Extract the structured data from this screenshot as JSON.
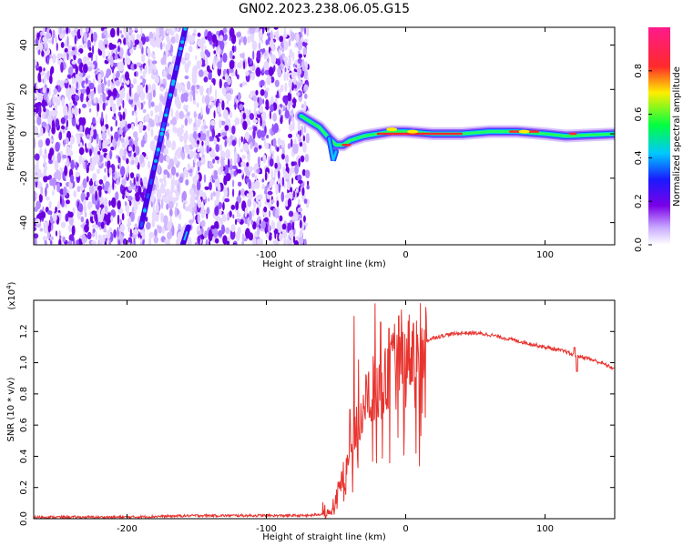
{
  "title": "GN02.2023.238.06.05.G15",
  "chart_data": [
    {
      "type": "heatmap",
      "xlabel": "Height of straight line (km)",
      "ylabel": "Frequency (Hz)",
      "xlim": [
        -267,
        150
      ],
      "ylim": [
        -50,
        48
      ],
      "x_ticks": [
        -200,
        -100,
        0,
        100
      ],
      "y_ticks": [
        -40,
        -20,
        0,
        20,
        40
      ],
      "colorbar": {
        "label": "Normalized spectral amplitude",
        "range": [
          0,
          1
        ],
        "ticks": [
          0.0,
          0.2,
          0.4,
          0.6,
          0.8
        ],
        "colors": [
          "#ffffff",
          "#b088ff",
          "#7a00e8",
          "#2020ff",
          "#00d0ff",
          "#00ff40",
          "#ffee00",
          "#ff2a2a",
          "#ff1a8c"
        ]
      },
      "features": [
        {
          "name": "noise",
          "x_range": [
            -267,
            -70
          ],
          "y_range": [
            -50,
            48
          ]
        },
        {
          "name": "tilted-line",
          "x": [
            -190,
            -158
          ],
          "y": [
            -42,
            48
          ]
        },
        {
          "name": "main-trace",
          "x": [
            -75,
            -62,
            -55,
            -50,
            -45,
            -40,
            -30,
            -20,
            -10,
            0,
            20,
            40,
            60,
            80,
            100,
            115,
            150
          ],
          "y": [
            8,
            3,
            -2,
            -5,
            -5,
            -3,
            -1,
            0,
            1,
            1,
            0,
            0,
            1,
            1,
            0,
            -1,
            0
          ]
        },
        {
          "name": "dip",
          "x": [
            -55,
            -52,
            -50
          ],
          "y": [
            -2,
            -12,
            -8
          ]
        }
      ]
    },
    {
      "type": "line",
      "xlabel": "Height of straight line (km)",
      "ylabel": "SNR (10 * v/v)",
      "y_multiplier": "(x10",
      "y_multiplier_exp": "4",
      "y_multiplier_close": ")",
      "xlim": [
        -267,
        150
      ],
      "ylim": [
        0,
        1.4
      ],
      "x_ticks": [
        -200,
        -100,
        0,
        100
      ],
      "y_ticks": [
        0.0,
        0.2,
        0.4,
        0.6,
        0.8,
        1.0,
        1.2
      ],
      "color": "#e8332e",
      "series": [
        {
          "x": [
            -267,
            -200,
            -150,
            -100,
            -70,
            -60,
            -55,
            -50,
            -45,
            -40,
            -35,
            -30,
            -25,
            -20,
            -15,
            -10,
            -5,
            0,
            10,
            20,
            30,
            40,
            50,
            60,
            70,
            80,
            90,
            100,
            110,
            115,
            120,
            125,
            130,
            140,
            150
          ],
          "y": [
            0.01,
            0.01,
            0.02,
            0.02,
            0.02,
            0.03,
            0.05,
            0.12,
            0.28,
            0.45,
            0.6,
            0.72,
            0.85,
            0.8,
            0.9,
            0.95,
            1.0,
            1.05,
            1.12,
            1.16,
            1.18,
            1.19,
            1.19,
            1.18,
            1.16,
            1.14,
            1.12,
            1.1,
            1.08,
            1.07,
            1.05,
            1.04,
            1.03,
            1.0,
            0.96
          ]
        },
        {
          "name": "spikes",
          "x": [
            -40,
            -37,
            -34,
            -26,
            -22,
            -18,
            -12,
            -8,
            -5,
            -3
          ],
          "y": [
            0.7,
            1.3,
            1.02,
            0.65,
            1.38,
            1.26,
            1.22,
            1.25,
            1.3,
            1.34
          ]
        }
      ]
    }
  ]
}
